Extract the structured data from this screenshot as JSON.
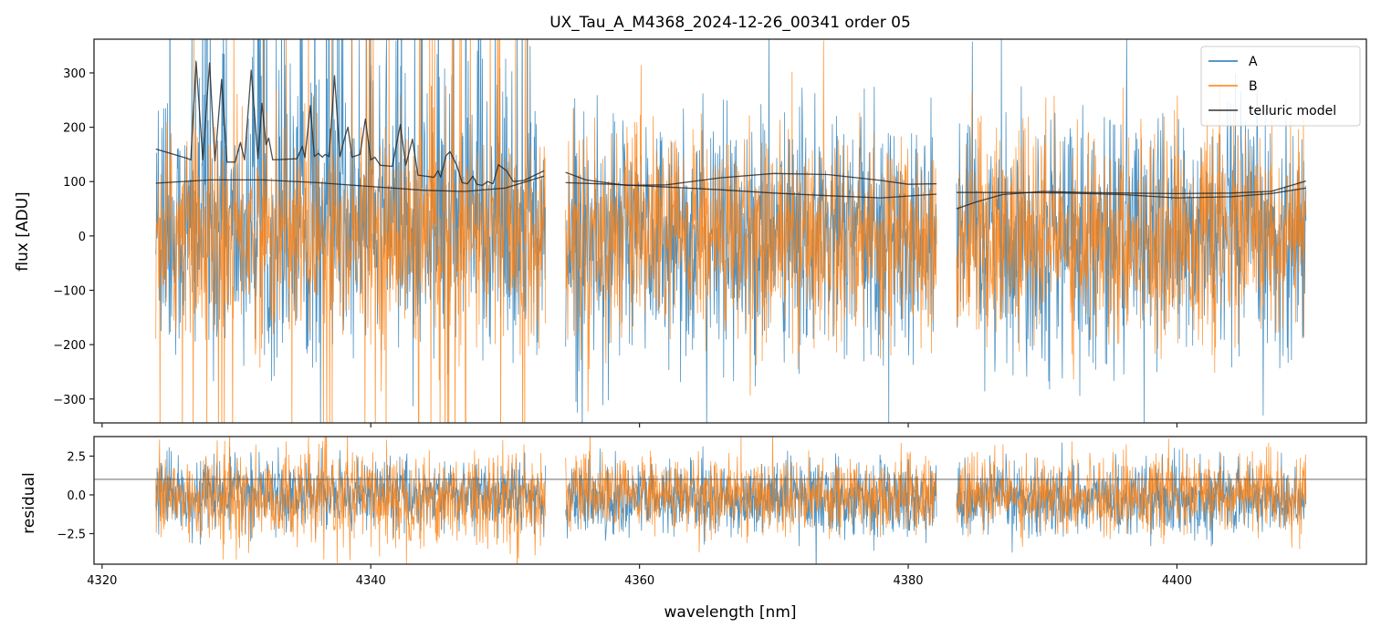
{
  "chart_data": [
    {
      "type": "line",
      "title": "UX_Tau_A_M4368_2024-12-26_00341  order 05",
      "xlabel": "",
      "ylabel": "flux [ADU]",
      "xlim": [
        4319.4,
        4414.1
      ],
      "ylim": [
        -344,
        362
      ],
      "xticks": [
        "4320",
        "4340",
        "4360",
        "4380",
        "4400"
      ],
      "xtick_values": [
        4320,
        4340,
        4360,
        4380,
        4400
      ],
      "yticks": [
        "300",
        "200",
        "100",
        "0",
        "−100",
        "−200",
        "−300"
      ],
      "ytick_values": [
        300,
        200,
        100,
        0,
        -100,
        -200,
        -300
      ],
      "legend": {
        "placement": "top-right",
        "entries": [
          "A",
          "B",
          "telluric model"
        ]
      },
      "segments": [
        [
          4324.0,
          4353.0
        ],
        [
          4354.5,
          4382.1
        ],
        [
          4383.6,
          4409.6
        ]
      ],
      "series": [
        {
          "name": "A",
          "color": "#1f77b4",
          "noise_std": 110,
          "spike_region": [
            4324,
            4352
          ]
        },
        {
          "name": "B",
          "color": "#ff7f0e",
          "noise_std": 95
        },
        {
          "name": "telluric model",
          "color": "#333333",
          "curves": [
            [
              [
                4324,
                160
              ],
              [
                4326.3,
                143
              ],
              [
                4326.6,
                140
              ],
              [
                4327,
                320
              ],
              [
                4327.5,
                140
              ],
              [
                4328,
                318
              ],
              [
                4328.4,
                138
              ],
              [
                4328.9,
                288
              ],
              [
                4329.3,
                136
              ],
              [
                4329.9,
                136
              ],
              [
                4330.3,
                172
              ],
              [
                4330.6,
                140
              ],
              [
                4331.1,
                305
              ],
              [
                4331.6,
                142
              ],
              [
                4331.9,
                244
              ],
              [
                4332.2,
                168
              ],
              [
                4332.4,
                180
              ],
              [
                4332.7,
                140
              ],
              [
                4334.5,
                142
              ],
              [
                4334.9,
                165
              ],
              [
                4335.1,
                144
              ],
              [
                4335.5,
                240
              ],
              [
                4335.8,
                146
              ],
              [
                4336.1,
                152
              ],
              [
                4336.4,
                145
              ],
              [
                4336.6,
                150
              ],
              [
                4336.9,
                146
              ],
              [
                4337.3,
                295
              ],
              [
                4337.7,
                146
              ],
              [
                4338.1,
                185
              ],
              [
                4338.3,
                200
              ],
              [
                4338.6,
                145
              ],
              [
                4339.2,
                150
              ],
              [
                4339.6,
                215
              ],
              [
                4340,
                140
              ],
              [
                4340.3,
                145
              ],
              [
                4340.7,
                130
              ],
              [
                4341.6,
                128
              ],
              [
                4342.2,
                205
              ],
              [
                4342.6,
                130
              ],
              [
                4343.1,
                178
              ],
              [
                4343.5,
                112
              ],
              [
                4344.7,
                108
              ],
              [
                4345,
                120
              ],
              [
                4345.2,
                108
              ],
              [
                4345.6,
                148
              ],
              [
                4345.9,
                155
              ],
              [
                4346.4,
                130
              ],
              [
                4346.8,
                98
              ],
              [
                4347.2,
                96
              ],
              [
                4347.6,
                110
              ],
              [
                4347.9,
                95
              ],
              [
                4348.3,
                93
              ],
              [
                4348.7,
                100
              ],
              [
                4349.1,
                96
              ],
              [
                4349.5,
                131
              ],
              [
                4350.1,
                120
              ],
              [
                4350.6,
                100
              ],
              [
                4351.4,
                102
              ],
              [
                4352.9,
                120
              ]
            ],
            [
              [
                4324,
                97
              ],
              [
                4328,
                103
              ],
              [
                4332,
                103
              ],
              [
                4336,
                98
              ],
              [
                4340,
                91
              ],
              [
                4344,
                84
              ],
              [
                4347,
                82
              ],
              [
                4350,
                88
              ],
              [
                4352.9,
                110
              ]
            ],
            [
              [
                4354.5,
                117
              ],
              [
                4356,
                103
              ],
              [
                4359,
                93
              ],
              [
                4362,
                94
              ],
              [
                4366,
                107
              ],
              [
                4370,
                115
              ],
              [
                4374,
                113
              ],
              [
                4378,
                102
              ],
              [
                4380,
                95
              ],
              [
                4382.1,
                96
              ]
            ],
            [
              [
                4354.5,
                98
              ],
              [
                4358,
                95
              ],
              [
                4362,
                90
              ],
              [
                4366,
                85
              ],
              [
                4370,
                79
              ],
              [
                4374,
                74
              ],
              [
                4378,
                70
              ],
              [
                4382.1,
                77
              ]
            ],
            [
              [
                4383.6,
                50
              ],
              [
                4385,
                62
              ],
              [
                4387,
                76
              ],
              [
                4390,
                82
              ],
              [
                4393,
                80
              ],
              [
                4396,
                79
              ],
              [
                4400,
                78
              ],
              [
                4404,
                79
              ],
              [
                4407,
                82
              ],
              [
                4409.6,
                101
              ]
            ],
            [
              [
                4383.6,
                80
              ],
              [
                4388,
                80
              ],
              [
                4392,
                79
              ],
              [
                4396,
                76
              ],
              [
                4400,
                70
              ],
              [
                4404,
                72
              ],
              [
                4407,
                78
              ],
              [
                4409.6,
                88
              ]
            ]
          ]
        }
      ]
    },
    {
      "type": "line",
      "title": "",
      "xlabel": "wavelength [nm]",
      "ylabel": "residual",
      "xlim": [
        4319.4,
        4414.1
      ],
      "ylim": [
        -4.47,
        3.76
      ],
      "xticks": [
        "4320",
        "4340",
        "4360",
        "4380",
        "4400"
      ],
      "xtick_values": [
        4320,
        4340,
        4360,
        4380,
        4400
      ],
      "yticks": [
        "2.5",
        "0.0",
        "−2.5"
      ],
      "ytick_values": [
        2.5,
        0.0,
        -2.5
      ],
      "reference_line": 1.0,
      "series": [
        {
          "name": "A",
          "color": "#1f77b4",
          "noise_std": 1.1
        },
        {
          "name": "B",
          "color": "#ff7f0e",
          "noise_std": 1.2
        }
      ]
    }
  ]
}
